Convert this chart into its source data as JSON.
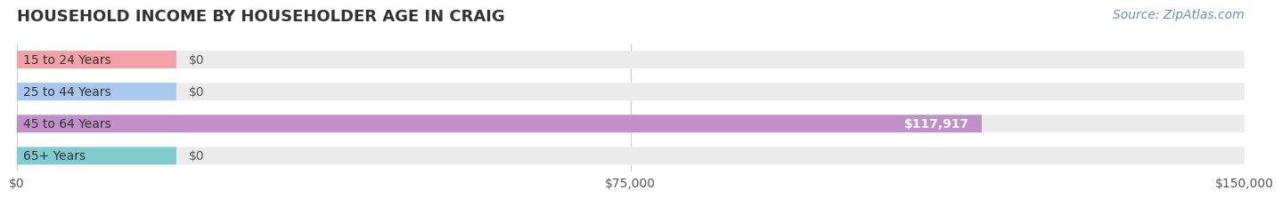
{
  "title": "HOUSEHOLD INCOME BY HOUSEHOLDER AGE IN CRAIG",
  "source": "Source: ZipAtlas.com",
  "categories": [
    "15 to 24 Years",
    "25 to 44 Years",
    "45 to 64 Years",
    "65+ Years"
  ],
  "values": [
    0,
    0,
    117917,
    0
  ],
  "bar_colors": [
    "#f4a0a8",
    "#a8c8f0",
    "#c090c8",
    "#80ccd0"
  ],
  "bar_bg_color": "#ebebeb",
  "xlim": [
    0,
    150000
  ],
  "xticks": [
    0,
    75000,
    150000
  ],
  "xtick_labels": [
    "$0",
    "$75,000",
    "$150,000"
  ],
  "value_labels": [
    "$0",
    "$0",
    "$117,917",
    "$0"
  ],
  "background_color": "#ffffff",
  "title_fontsize": 13,
  "label_fontsize": 10,
  "tick_fontsize": 10,
  "source_fontsize": 10
}
